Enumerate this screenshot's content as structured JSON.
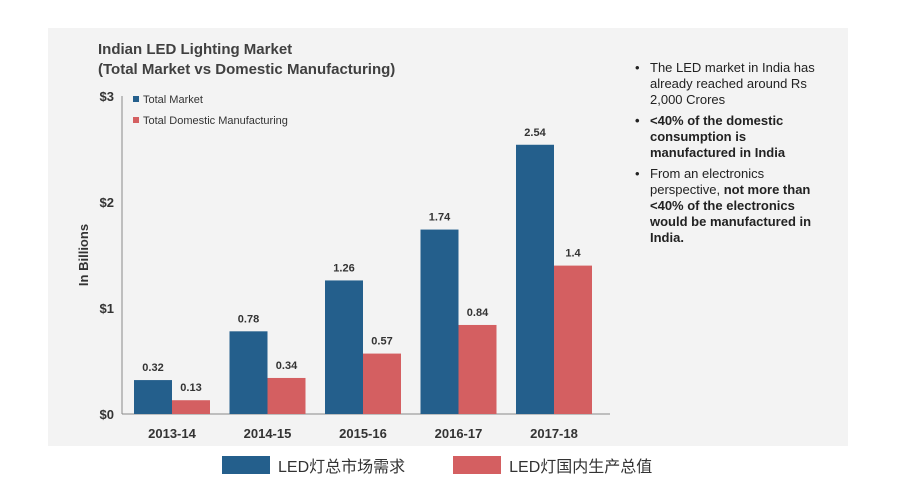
{
  "chart_data": {
    "type": "bar",
    "title_lines": [
      "Indian LED Lighting Market",
      "(Total Market vs Domestic Manufacturing)"
    ],
    "categories": [
      "2013-14",
      "2014-15",
      "2015-16",
      "2016-17",
      "2017-18"
    ],
    "series": [
      {
        "name": "Total Market",
        "values": [
          0.32,
          0.78,
          1.26,
          1.74,
          2.54
        ],
        "color": "#245f8c"
      },
      {
        "name": "Total Domestic Manufacturing",
        "values": [
          0.13,
          0.34,
          0.57,
          0.84,
          1.4
        ],
        "color": "#d45f61"
      }
    ],
    "data_labels": [
      [
        "0.32",
        "0.78",
        "1.26",
        "1.74",
        "2.54"
      ],
      [
        "0.13",
        "0.34",
        "0.57",
        "0.84",
        "1.4"
      ]
    ],
    "ylabel": "In Billions",
    "yticks": [
      "$0",
      "$1",
      "$2",
      "$3"
    ],
    "ytick_values": [
      0,
      1,
      2,
      3
    ],
    "ylim": [
      0,
      3
    ],
    "grid": false,
    "legend_position": "top-left"
  },
  "bullets": [
    {
      "text": "The LED market in India has already reached around Rs 2,000 Crores",
      "style": "normal"
    },
    {
      "text": "<40%  of the domestic consumption is manufactured in India",
      "style": "bold"
    },
    {
      "prefix": "From an electronics perspective, ",
      "bold": "not more than <40% of the electronics would be manufactured in India.",
      "style": "mixed"
    }
  ],
  "bottom_legend": [
    {
      "label": "LED灯总市场需求",
      "color": "#245f8c"
    },
    {
      "label": "LED灯国内生产总值",
      "color": "#d45f61"
    }
  ],
  "bullet_glyph": "•"
}
